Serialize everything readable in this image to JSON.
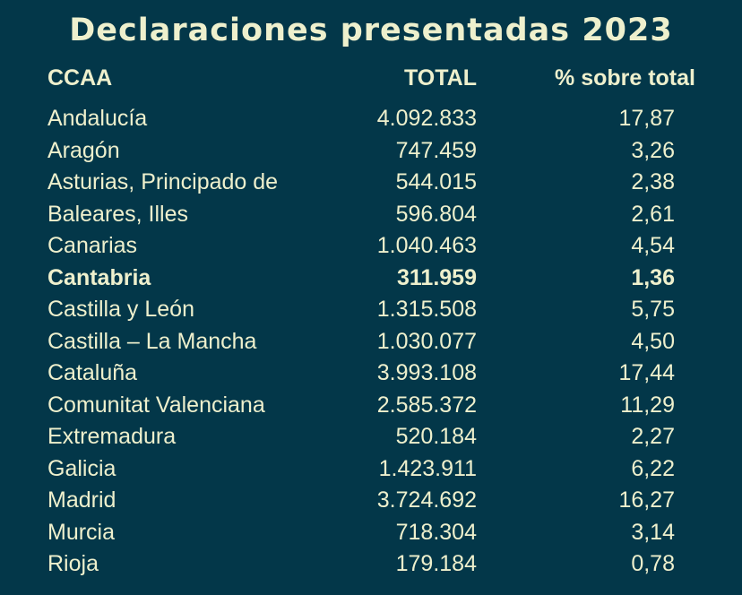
{
  "chart_data": {
    "type": "table",
    "title": "Declaraciones presentadas 2023",
    "columns": [
      "CCAA",
      "TOTAL",
      "% sobre total"
    ],
    "rows": [
      {
        "ccaa": "Andalucía",
        "total": "4.092.833",
        "pct": "17,87",
        "bold": false
      },
      {
        "ccaa": "Aragón",
        "total": "747.459",
        "pct": "3,26",
        "bold": false
      },
      {
        "ccaa": "Asturias, Principado de",
        "total": "544.015",
        "pct": "2,38",
        "bold": false
      },
      {
        "ccaa": "Baleares, Illes",
        "total": "596.804",
        "pct": "2,61",
        "bold": false
      },
      {
        "ccaa": "Canarias",
        "total": "1.040.463",
        "pct": "4,54",
        "bold": false
      },
      {
        "ccaa": "Cantabria",
        "total": "311.959",
        "pct": "1,36",
        "bold": true
      },
      {
        "ccaa": "Castilla y León",
        "total": "1.315.508",
        "pct": "5,75",
        "bold": false
      },
      {
        "ccaa": "Castilla – La Mancha",
        "total": "1.030.077",
        "pct": "4,50",
        "bold": false
      },
      {
        "ccaa": "Cataluña",
        "total": "3.993.108",
        "pct": "17,44",
        "bold": false
      },
      {
        "ccaa": "Comunitat Valenciana",
        "total": "2.585.372",
        "pct": "11,29",
        "bold": false
      },
      {
        "ccaa": "Extremadura",
        "total": "520.184",
        "pct": "2,27",
        "bold": false
      },
      {
        "ccaa": "Galicia",
        "total": "1.423.911",
        "pct": "6,22",
        "bold": false
      },
      {
        "ccaa": "Madrid",
        "total": "3.724.692",
        "pct": "16,27",
        "bold": false
      },
      {
        "ccaa": "Murcia",
        "total": "718.304",
        "pct": "3,14",
        "bold": false
      },
      {
        "ccaa": "Rioja",
        "total": "179.184",
        "pct": "0,78",
        "bold": false
      }
    ]
  },
  "colors": {
    "background": "#033749",
    "text": "#eef0cd"
  }
}
